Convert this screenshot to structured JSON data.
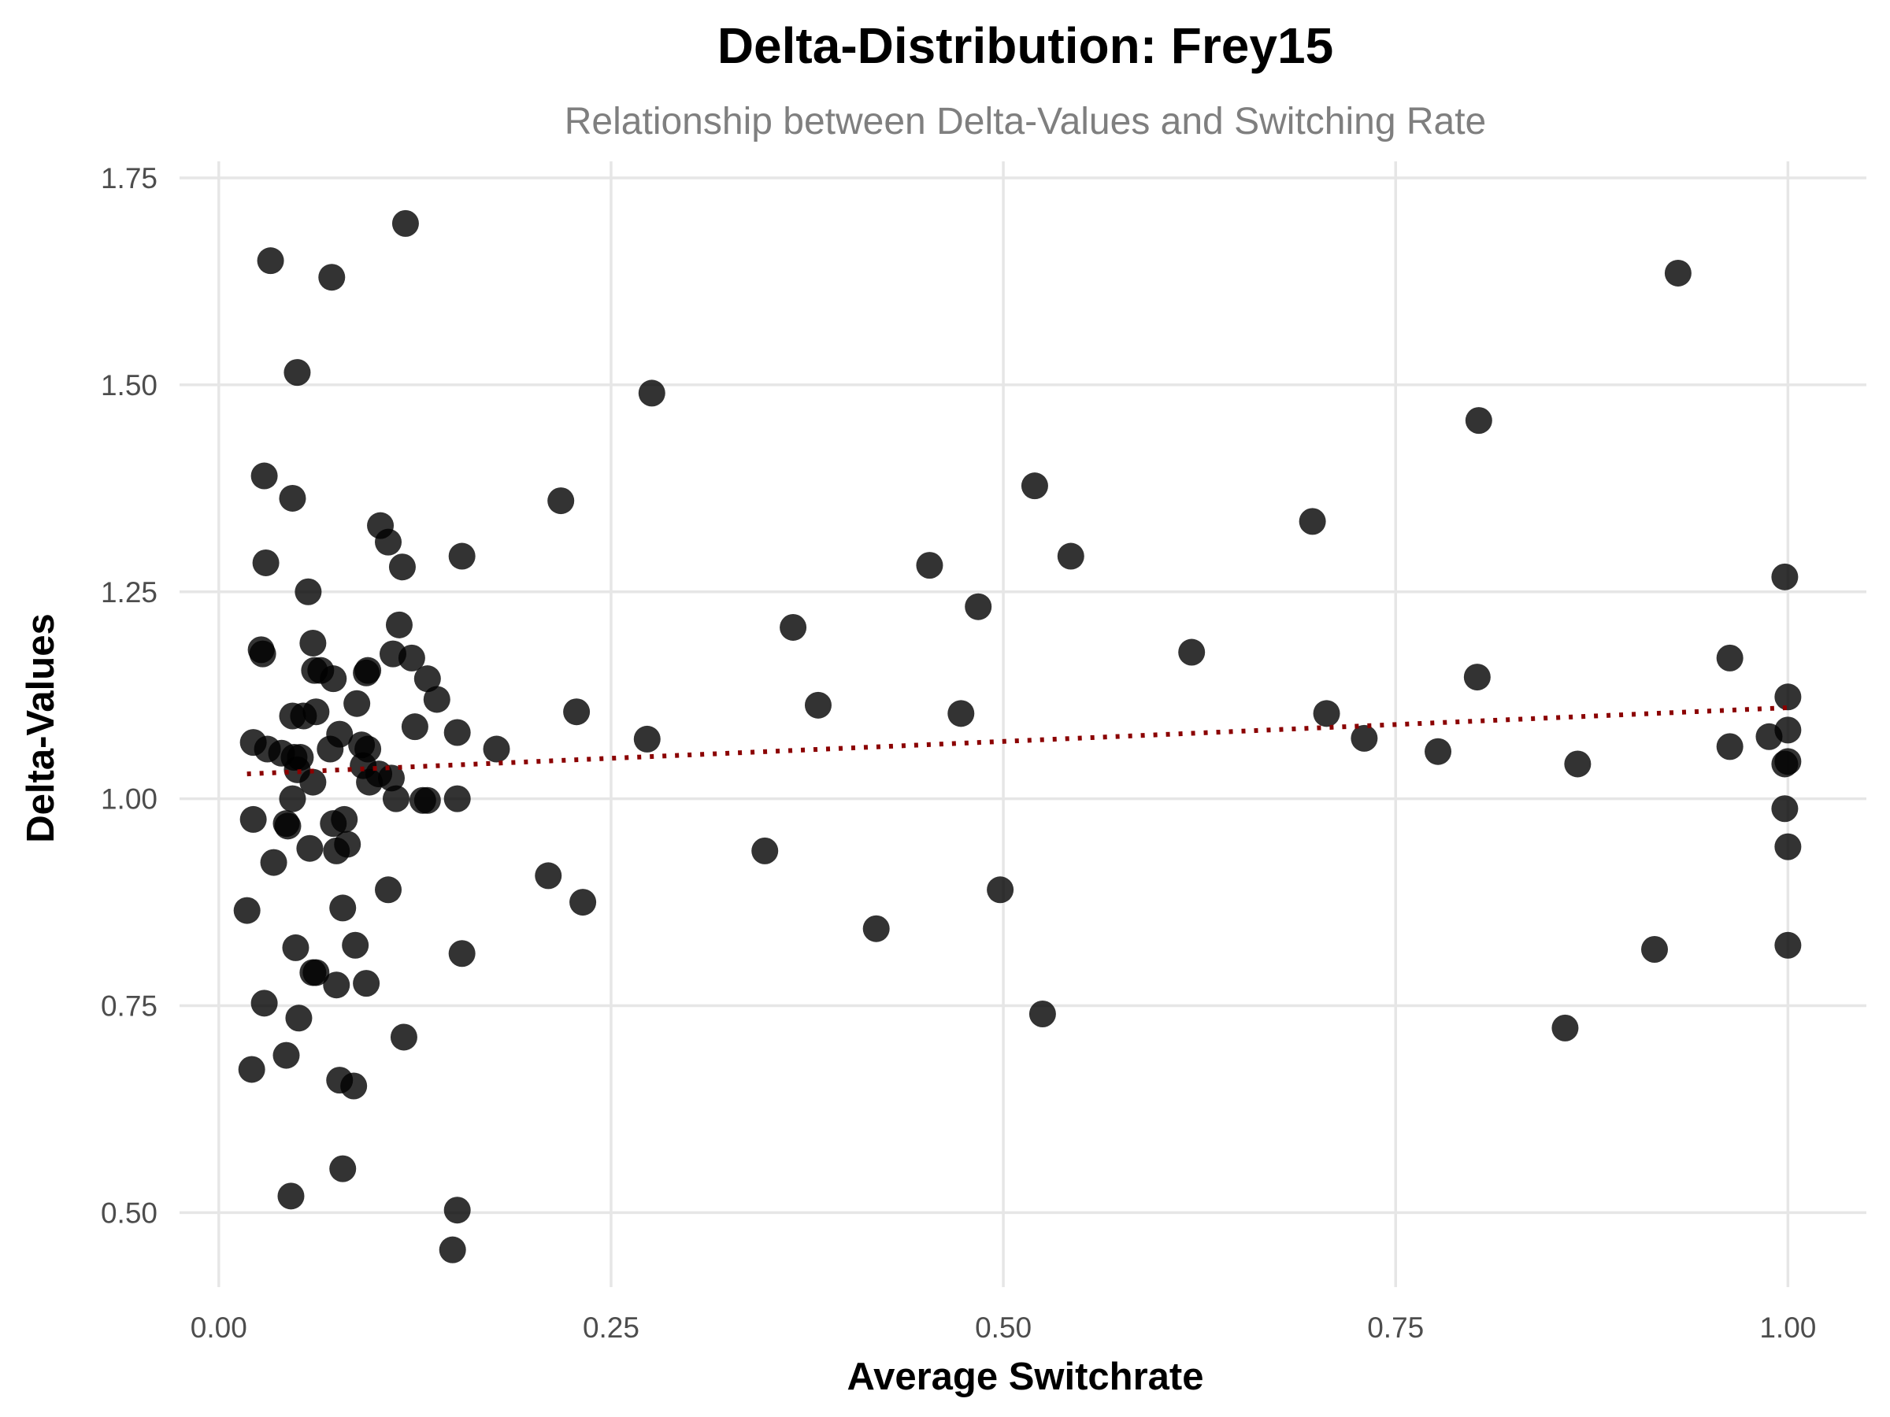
{
  "chart_data": {
    "type": "scatter",
    "title": "Delta-Distribution: Frey15",
    "subtitle": "Relationship between Delta-Values and Switching Rate",
    "xlabel": "Average Switchrate",
    "ylabel": "Delta-Values",
    "xlim": [
      -0.025,
      1.05
    ],
    "ylim": [
      0.41,
      1.77
    ],
    "xticks": [
      0.0,
      0.25,
      0.5,
      0.75,
      1.0
    ],
    "xtick_labels": [
      "0.00",
      "0.25",
      "0.50",
      "0.75",
      "1.00"
    ],
    "yticks": [
      0.5,
      0.75,
      1.0,
      1.25,
      1.5,
      1.75
    ],
    "ytick_labels": [
      "0.50",
      "0.75",
      "1.00",
      "1.25",
      "1.50",
      "1.75"
    ],
    "grid": true,
    "point_color": "#000000",
    "point_opacity": 0.8,
    "trend": {
      "style": "dotted",
      "color": "#8b0000",
      "x": [
        0.018,
        1.0
      ],
      "y": [
        1.03,
        1.11
      ]
    },
    "points": [
      [
        0.033,
        1.65
      ],
      [
        0.072,
        1.63
      ],
      [
        0.119,
        1.695
      ],
      [
        0.05,
        1.515
      ],
      [
        0.029,
        1.39
      ],
      [
        0.047,
        1.363
      ],
      [
        0.103,
        1.33
      ],
      [
        0.108,
        1.31
      ],
      [
        0.03,
        1.285
      ],
      [
        0.117,
        1.28
      ],
      [
        0.057,
        1.25
      ],
      [
        0.115,
        1.21
      ],
      [
        0.06,
        1.188
      ],
      [
        0.027,
        1.18
      ],
      [
        0.028,
        1.175
      ],
      [
        0.111,
        1.175
      ],
      [
        0.123,
        1.17
      ],
      [
        0.061,
        1.155
      ],
      [
        0.065,
        1.155
      ],
      [
        0.073,
        1.145
      ],
      [
        0.094,
        1.152
      ],
      [
        0.095,
        1.155
      ],
      [
        0.133,
        1.145
      ],
      [
        0.139,
        1.12
      ],
      [
        0.088,
        1.115
      ],
      [
        0.062,
        1.105
      ],
      [
        0.047,
        1.1
      ],
      [
        0.054,
        1.1
      ],
      [
        0.125,
        1.087
      ],
      [
        0.077,
        1.078
      ],
      [
        0.152,
        1.08
      ],
      [
        0.022,
        1.068
      ],
      [
        0.031,
        1.06
      ],
      [
        0.071,
        1.06
      ],
      [
        0.091,
        1.065
      ],
      [
        0.095,
        1.06
      ],
      [
        0.04,
        1.055
      ],
      [
        0.048,
        1.05
      ],
      [
        0.052,
        1.05
      ],
      [
        0.092,
        1.04
      ],
      [
        0.05,
        1.035
      ],
      [
        0.102,
        1.03
      ],
      [
        0.11,
        1.025
      ],
      [
        0.06,
        1.02
      ],
      [
        0.096,
        1.02
      ],
      [
        0.047,
        1.0
      ],
      [
        0.113,
        1.0
      ],
      [
        0.13,
        0.998
      ],
      [
        0.133,
        0.998
      ],
      [
        0.152,
        1.0
      ],
      [
        0.022,
        0.975
      ],
      [
        0.043,
        0.97
      ],
      [
        0.044,
        0.967
      ],
      [
        0.08,
        0.975
      ],
      [
        0.073,
        0.97
      ],
      [
        0.058,
        0.94
      ],
      [
        0.075,
        0.937
      ],
      [
        0.082,
        0.945
      ],
      [
        0.035,
        0.923
      ],
      [
        0.108,
        0.89
      ],
      [
        0.018,
        0.865
      ],
      [
        0.079,
        0.868
      ],
      [
        0.087,
        0.823
      ],
      [
        0.049,
        0.82
      ],
      [
        0.155,
        0.813
      ],
      [
        0.06,
        0.79
      ],
      [
        0.062,
        0.79
      ],
      [
        0.075,
        0.775
      ],
      [
        0.094,
        0.777
      ],
      [
        0.029,
        0.753
      ],
      [
        0.051,
        0.735
      ],
      [
        0.118,
        0.712
      ],
      [
        0.043,
        0.69
      ],
      [
        0.021,
        0.673
      ],
      [
        0.077,
        0.66
      ],
      [
        0.086,
        0.653
      ],
      [
        0.079,
        0.553
      ],
      [
        0.046,
        0.52
      ],
      [
        0.152,
        0.503
      ],
      [
        0.149,
        0.455
      ],
      [
        0.177,
        1.06
      ],
      [
        0.155,
        1.293
      ],
      [
        0.218,
        1.36
      ],
      [
        0.276,
        1.49
      ],
      [
        0.228,
        1.105
      ],
      [
        0.273,
        1.072
      ],
      [
        0.21,
        0.907
      ],
      [
        0.232,
        0.875
      ],
      [
        0.366,
        1.207
      ],
      [
        0.382,
        1.113
      ],
      [
        0.348,
        0.937
      ],
      [
        0.419,
        0.843
      ],
      [
        0.453,
        1.282
      ],
      [
        0.484,
        1.232
      ],
      [
        0.473,
        1.103
      ],
      [
        0.498,
        0.89
      ],
      [
        0.52,
        1.378
      ],
      [
        0.543,
        1.293
      ],
      [
        0.525,
        0.74
      ],
      [
        0.62,
        1.177
      ],
      [
        0.697,
        1.335
      ],
      [
        0.706,
        1.103
      ],
      [
        0.73,
        1.073
      ],
      [
        0.777,
        1.057
      ],
      [
        0.803,
        1.457
      ],
      [
        0.802,
        1.147
      ],
      [
        0.866,
        1.042
      ],
      [
        0.858,
        0.723
      ],
      [
        0.93,
        1.635
      ],
      [
        0.963,
        1.17
      ],
      [
        0.963,
        1.063
      ],
      [
        0.915,
        0.818
      ],
      [
        0.998,
        1.268
      ],
      [
        1.0,
        1.123
      ],
      [
        1.0,
        1.083
      ],
      [
        0.988,
        1.075
      ],
      [
        0.998,
        1.042
      ],
      [
        1.0,
        1.045
      ],
      [
        0.998,
        0.988
      ],
      [
        1.0,
        0.942
      ],
      [
        1.0,
        0.823
      ]
    ]
  }
}
